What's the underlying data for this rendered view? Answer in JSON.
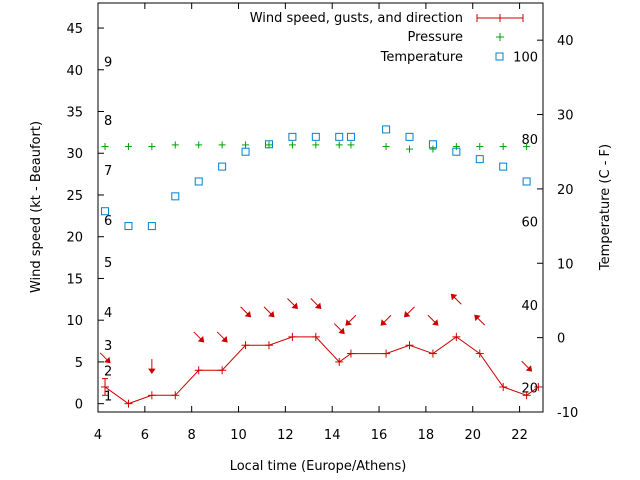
{
  "chart_data": {
    "type": "line",
    "xlabel": "Local time (Europe/Athens)",
    "ylabel_left": "Wind speed (kt - Beaufort)",
    "ylabel_right": "Temperature (C - F)",
    "xlim": [
      4,
      23
    ],
    "ylim_left": [
      -1,
      48
    ],
    "ylim_right": [
      -10,
      45
    ],
    "x_ticks": [
      4,
      6,
      8,
      10,
      12,
      14,
      16,
      18,
      20,
      22
    ],
    "y_left_ticks": [
      0,
      5,
      10,
      15,
      20,
      25,
      30,
      35,
      40,
      45
    ],
    "y_right_ticks": [
      -10,
      0,
      10,
      20,
      30,
      40
    ],
    "beaufort_labels": [
      {
        "label": "1",
        "kt": 1
      },
      {
        "label": "2",
        "kt": 4
      },
      {
        "label": "3",
        "kt": 7
      },
      {
        "label": "4",
        "kt": 11
      },
      {
        "label": "5",
        "kt": 17
      },
      {
        "label": "6",
        "kt": 22
      },
      {
        "label": "7",
        "kt": 28
      },
      {
        "label": "8",
        "kt": 34
      },
      {
        "label": "9",
        "kt": 41
      }
    ],
    "fahrenheit_labels": [
      {
        "label": "20",
        "c": -6.7
      },
      {
        "label": "40",
        "c": 4.4
      },
      {
        "label": "60",
        "c": 15.6
      },
      {
        "label": "80",
        "c": 26.7
      },
      {
        "label": "100",
        "c": 37.8
      }
    ],
    "legend": [
      {
        "name": "Wind speed, gusts, and direction",
        "color": "#cc0000",
        "marker": "plus-line"
      },
      {
        "name": "Pressure",
        "color": "#00a000",
        "marker": "plus"
      },
      {
        "name": "Temperature",
        "color": "#0080cc",
        "marker": "square"
      }
    ],
    "series": [
      {
        "name": "Wind speed, gusts, and direction",
        "color": "#cc0000",
        "x": [
          4.3,
          5.3,
          6.3,
          7.3,
          8.3,
          9.3,
          10.3,
          11.3,
          12.3,
          13.3,
          14.3,
          14.8,
          16.3,
          17.3,
          18.3,
          19.3,
          20.3,
          21.3,
          22.3,
          22.8
        ],
        "values": [
          2,
          0,
          1,
          1,
          4,
          4,
          7,
          7,
          8,
          8,
          5,
          6,
          6,
          7,
          6,
          8,
          6,
          2,
          1,
          2
        ],
        "error_low": [
          1,
          0,
          0,
          0,
          0,
          0,
          0,
          0,
          0,
          0,
          0,
          0,
          0,
          0,
          0,
          0,
          0,
          0,
          0,
          0
        ],
        "error_high": [
          3,
          0,
          0,
          0,
          0,
          0,
          0,
          0,
          0,
          0,
          0,
          0,
          0,
          0,
          0,
          0,
          0,
          0,
          0,
          0
        ]
      },
      {
        "name": "Direction arrows",
        "color": "#cc0000",
        "x": [
          4.3,
          6.3,
          8.3,
          9.3,
          10.3,
          11.3,
          12.3,
          13.3,
          14.3,
          14.8,
          16.3,
          17.3,
          18.3,
          19.3,
          20.3,
          22.3
        ],
        "values": [
          5.5,
          4.5,
          8,
          8,
          11,
          11,
          12,
          12,
          9,
          10,
          10,
          11,
          10,
          12.5,
          10,
          4.5
        ],
        "direction_deg": [
          45,
          0,
          45,
          45,
          45,
          45,
          45,
          45,
          45,
          315,
          315,
          315,
          45,
          225,
          225,
          45
        ]
      },
      {
        "name": "Pressure",
        "color": "#00a000",
        "x": [
          4.3,
          5.3,
          6.3,
          7.3,
          8.3,
          9.3,
          10.3,
          11.3,
          12.3,
          13.3,
          14.3,
          14.8,
          16.3,
          17.3,
          18.3,
          19.3,
          20.3,
          21.3,
          22.3
        ],
        "values": [
          30.8,
          30.8,
          30.8,
          31,
          31,
          31,
          31,
          31,
          31,
          31,
          31,
          31,
          30.8,
          30.5,
          30.5,
          30.8,
          30.8,
          30.8,
          30.8
        ]
      },
      {
        "name": "Temperature",
        "color": "#0080cc",
        "x": [
          4.3,
          5.3,
          6.3,
          7.3,
          8.3,
          9.3,
          10.3,
          11.3,
          12.3,
          13.3,
          14.3,
          14.8,
          16.3,
          17.3,
          18.3,
          19.3,
          20.3,
          21.3,
          22.3
        ],
        "values_c": [
          17,
          15,
          15,
          19,
          21,
          23,
          25,
          26,
          27,
          27,
          27,
          27,
          28,
          27,
          26,
          25,
          24,
          23,
          21
        ]
      }
    ]
  }
}
